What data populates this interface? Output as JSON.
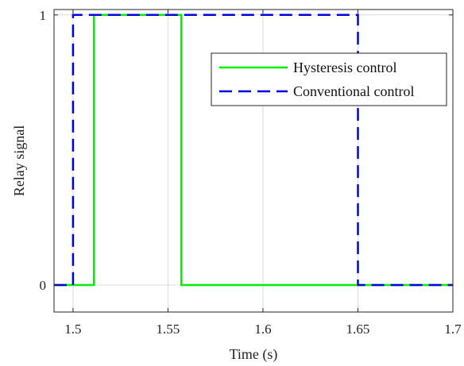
{
  "chart_data": {
    "type": "line",
    "xlabel": "Time (s)",
    "ylabel": "Relay signal",
    "xlim": [
      1.49,
      1.7
    ],
    "ylim": [
      -0.1,
      1.02
    ],
    "x_ticks": [
      1.5,
      1.55,
      1.6,
      1.65,
      1.7
    ],
    "x_tick_labels": [
      "1.5",
      "1.55",
      "1.6",
      "1.65",
      "1.7"
    ],
    "y_ticks": [
      0,
      1
    ],
    "y_tick_labels": [
      "0",
      "1"
    ],
    "grid": true,
    "legend_position": "top-right",
    "series": [
      {
        "name": "Hysteresis control",
        "color": "#00ee00",
        "style": "solid",
        "x": [
          1.49,
          1.511,
          1.511,
          1.557,
          1.557,
          1.7
        ],
        "y": [
          0,
          0,
          1,
          1,
          0,
          0
        ]
      },
      {
        "name": "Conventional control",
        "color": "#0000dd",
        "style": "dashed",
        "x": [
          1.49,
          1.5,
          1.5,
          1.65,
          1.65,
          1.7
        ],
        "y": [
          0,
          0,
          1,
          1,
          0,
          0
        ]
      }
    ]
  }
}
